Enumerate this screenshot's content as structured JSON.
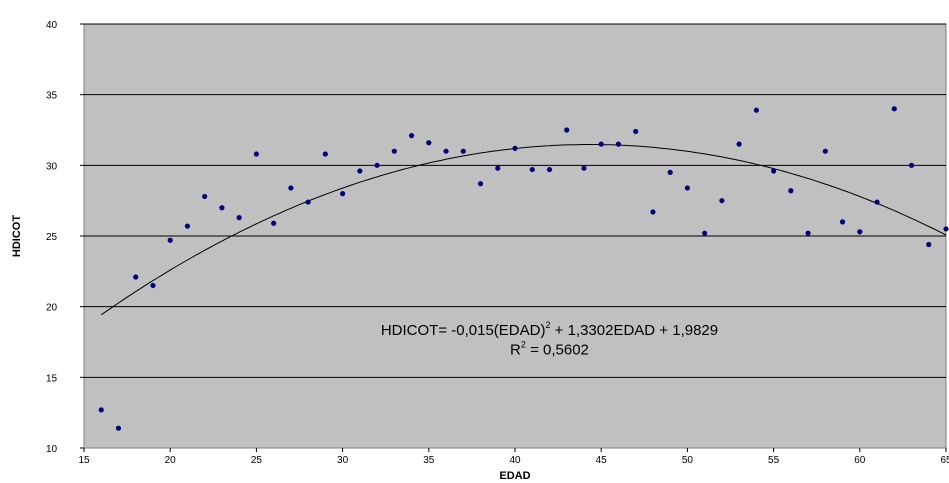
{
  "chart_data": {
    "type": "scatter",
    "xlabel": "EDAD",
    "ylabel": "HDICOT",
    "xlim": [
      15,
      65
    ],
    "ylim": [
      10,
      40
    ],
    "xticks": [
      15,
      20,
      25,
      30,
      35,
      40,
      45,
      50,
      55,
      60,
      65
    ],
    "yticks": [
      10,
      15,
      20,
      25,
      30,
      35,
      40
    ],
    "xtick_labels": [
      "15",
      "20",
      "25",
      "30",
      "35",
      "40",
      "45",
      "50",
      "55",
      "60",
      "65"
    ],
    "ytick_labels": [
      "10",
      "15",
      "20",
      "25",
      "30",
      "35",
      "40"
    ],
    "grid": "horizontal",
    "background": "#c0c0c0",
    "point_color": "#000080",
    "x": [
      16,
      17,
      18,
      19,
      20,
      21,
      22,
      23,
      24,
      25,
      26,
      27,
      28,
      29,
      30,
      31,
      32,
      33,
      34,
      35,
      36,
      37,
      38,
      39,
      40,
      41,
      42,
      43,
      44,
      45,
      46,
      47,
      48,
      49,
      50,
      51,
      52,
      53,
      54,
      55,
      56,
      57,
      58,
      59,
      60,
      61,
      62,
      63,
      64,
      65
    ],
    "y": [
      12.7,
      11.4,
      22.1,
      21.5,
      24.7,
      25.7,
      27.8,
      27.0,
      26.3,
      30.8,
      25.9,
      28.4,
      27.4,
      30.8,
      28.0,
      29.6,
      30.0,
      31.0,
      32.1,
      31.6,
      31.0,
      31.0,
      28.7,
      29.8,
      31.2,
      29.7,
      29.7,
      32.5,
      29.8,
      31.5,
      31.5,
      32.4,
      26.7,
      29.5,
      28.4,
      25.2,
      27.5,
      31.5,
      33.9,
      29.6,
      28.2,
      25.2,
      31.0,
      26.0,
      25.3,
      27.4,
      34.0,
      30.0,
      24.4,
      25.5
    ],
    "trendline": {
      "type": "polynomial",
      "coefficients": {
        "a": -0.015,
        "b": 1.3302,
        "c": 1.9829
      },
      "x_range": [
        16,
        65
      ],
      "equation_lines": [
        "HDICOT= -0,015(EDAD)",
        "2",
        " + 1,3302EDAD + 1,9829"
      ],
      "r2_lines": [
        "R",
        "2",
        " = 0,5602"
      ]
    }
  }
}
